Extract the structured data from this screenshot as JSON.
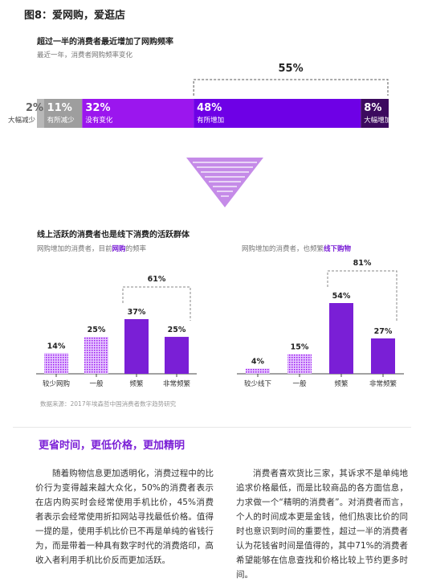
{
  "figure_title": "图8：爱网购，爱逛店",
  "top_chart": {
    "title": "超过一半的消费者最近增加了网购频率",
    "subtitle": "最近一年，消费者网购频率变化",
    "bracket_label": "55%"
  },
  "left_chart": {
    "title": "线上活跃的消费者也是线下消费的活跃群体",
    "subtitle_pre": "网购增加的消费者，目前",
    "subtitle_hl": "网购",
    "subtitle_post": "的频率",
    "bracket_label": "61%"
  },
  "right_chart": {
    "subtitle_pre": "网购增加的消费者，也频繁",
    "subtitle_hl": "线下购物",
    "bracket_label": "81%"
  },
  "source": "数据来源：2017年埃森哲中国消费者数字趋势研究",
  "section_heading": "更省时间，更低价格，更加精明",
  "para_left": "随着购物信息更加透明化，消费过程中的比价行为变得越来越大众化，50%的消费者表示在店内购买时会经常使用手机比价，45%消费者表示会经常使用折扣网站寻找最低价格。值得一提的是，使用手机比价已不再是单纯的省钱行为，而是带着一种具有数字时代的消费烙印，高收入者利用手机比价反而更加活跃。",
  "para_right": "消费者喜欢货比三家，其诉求不是单纯地追求价格最低，而是比较商品的各方面信息，力求做一个“精明的消费者”。对消费者而言，个人的时间成本更是金钱，他们热衷比价的同时也意识到时间的重要性，超过一半的消费者认为花钱省时间是值得的，其中71%的消费者希望能够在信息查找和价格比较上节约更多时间。",
  "chart_data": [
    {
      "type": "bar",
      "orientation": "horizontal-stacked",
      "categories": [
        "大幅减少",
        "有所减少",
        "没有变化",
        "有所增加",
        "大幅增加"
      ],
      "value_labels": [
        "2%",
        "11%",
        "32%",
        "48%",
        "8%"
      ],
      "values": [
        2,
        11,
        32,
        48,
        8
      ],
      "colors": [
        "#b8b8b8",
        "#9e9e9e",
        "#9b16ee",
        "#6e00e6",
        "#3c0a5e"
      ],
      "title": "超过一半的消费者最近增加了网购频率",
      "subtitle": "最近一年，消费者网购频率变化",
      "annotation": "55%"
    },
    {
      "type": "bar",
      "categories": [
        "较少网购",
        "一般",
        "频繁",
        "非常频繁"
      ],
      "values": [
        14,
        25,
        37,
        25
      ],
      "value_labels": [
        "14%",
        "25%",
        "37%",
        "25%"
      ],
      "styles": [
        "hatched",
        "hatched",
        "solid",
        "solid"
      ],
      "ylim": [
        0,
        37
      ],
      "annotation": "61%"
    },
    {
      "type": "bar",
      "categories": [
        "较少线下",
        "一般",
        "频繁",
        "非常频繁"
      ],
      "values": [
        4,
        15,
        54,
        27
      ],
      "value_labels": [
        "4%",
        "15%",
        "54%",
        "27%"
      ],
      "styles": [
        "hatched",
        "hatched",
        "solid",
        "solid"
      ],
      "ylim": [
        0,
        54
      ],
      "annotation": "81%"
    }
  ]
}
